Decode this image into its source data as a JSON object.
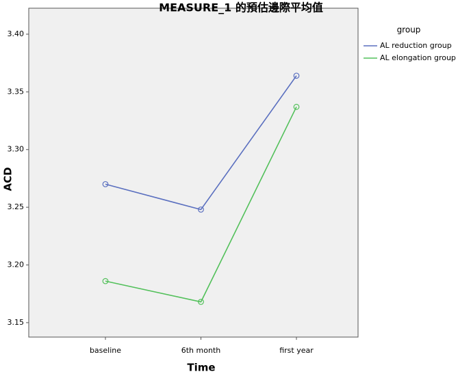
{
  "chart_data": {
    "type": "line",
    "title": "MEASURE_1 的預估邊際平均值",
    "x_label": "Time",
    "y_label": "ACD",
    "categories": [
      "baseline",
      "6th month",
      "first year"
    ],
    "series": [
      {
        "name": "AL reduction group",
        "color": "#5a6fbf",
        "values": [
          3.27,
          3.248,
          3.364
        ]
      },
      {
        "name": "AL elongation group",
        "color": "#52c05a",
        "values": [
          3.186,
          3.168,
          3.337
        ]
      }
    ],
    "ylim": [
      3.1375,
      3.4225
    ],
    "yticks": [
      {
        "value": 3.15,
        "label": "3.15"
      },
      {
        "value": 3.2,
        "label": "3.20"
      },
      {
        "value": 3.25,
        "label": "3.25"
      },
      {
        "value": 3.3,
        "label": "3.30"
      },
      {
        "value": 3.35,
        "label": "3.35"
      },
      {
        "value": 3.4,
        "label": "3.40"
      }
    ],
    "legend_title": "group"
  }
}
